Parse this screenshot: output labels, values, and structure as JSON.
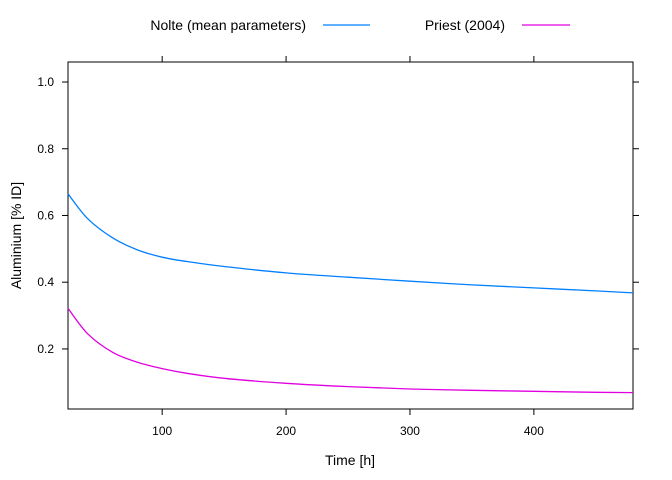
{
  "chart_data": {
    "type": "line",
    "title": "",
    "xlabel": "Time [h]",
    "ylabel": "Aluminium [% ID]",
    "xlim": [
      24,
      480
    ],
    "ylim": [
      0.02,
      1.06
    ],
    "x_ticks": [
      100,
      200,
      300,
      400
    ],
    "y_ticks": [
      0.2,
      0.4,
      0.6,
      0.8,
      1.0
    ],
    "x_tick_labels": [
      "100",
      "200",
      "300",
      "400"
    ],
    "y_tick_labels": [
      "0.2",
      "0.4",
      "0.6",
      "0.8",
      "1.0"
    ],
    "grid": false,
    "legend_position": "top",
    "series": [
      {
        "name": "Nolte (mean parameters)",
        "color": "#0080ff",
        "x": [
          24,
          40,
          60,
          80,
          100,
          120,
          150,
          200,
          250,
          300,
          350,
          400,
          450,
          480
        ],
        "y": [
          0.665,
          0.59,
          0.533,
          0.497,
          0.475,
          0.462,
          0.447,
          0.428,
          0.415,
          0.403,
          0.392,
          0.383,
          0.374,
          0.368
        ]
      },
      {
        "name": "Priest (2004)",
        "color": "#e000e0",
        "x": [
          24,
          40,
          60,
          80,
          100,
          120,
          150,
          200,
          250,
          300,
          350,
          400,
          450,
          480
        ],
        "y": [
          0.322,
          0.245,
          0.19,
          0.16,
          0.141,
          0.127,
          0.112,
          0.097,
          0.087,
          0.08,
          0.076,
          0.073,
          0.07,
          0.069
        ]
      }
    ]
  }
}
